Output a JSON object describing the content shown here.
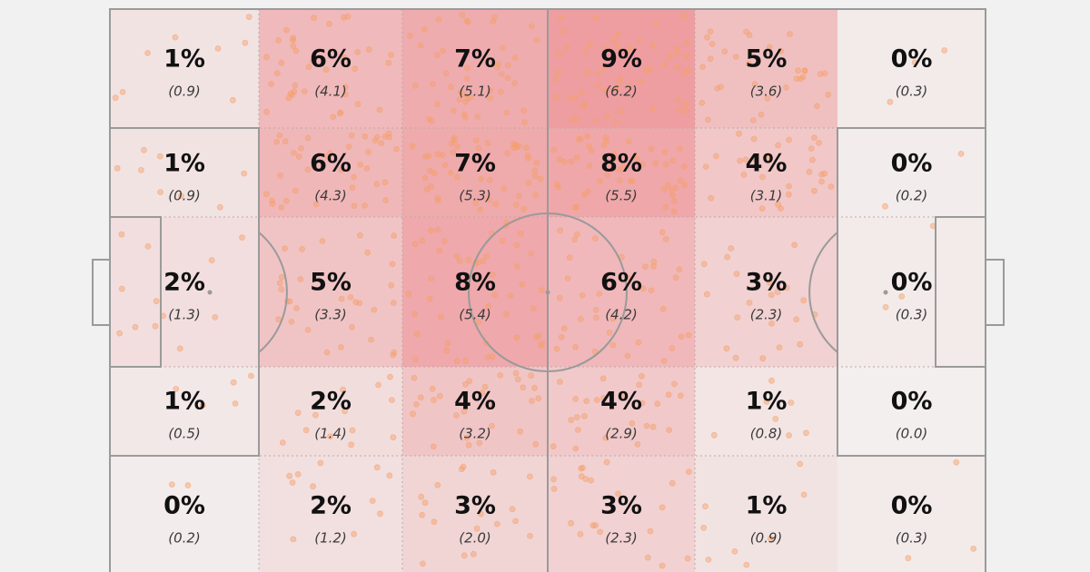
{
  "colors": {
    "background": "#f2f1f1",
    "heat_low": "#f3efee",
    "heat_high": "#ee9ea1",
    "point": "#f5a06a",
    "line": "#9a9a9a"
  },
  "chart_data": {
    "type": "heatmap",
    "title": "",
    "description_of_layout": "",
    "rows": 5,
    "cols": 6,
    "cells": [
      [
        {
          "pct": "1%",
          "count": "(0.9)",
          "value": 0.9
        },
        {
          "pct": "6%",
          "count": "(4.1)",
          "value": 4.1
        },
        {
          "pct": "7%",
          "count": "(5.1)",
          "value": 5.1
        },
        {
          "pct": "9%",
          "count": "(6.2)",
          "value": 6.2
        },
        {
          "pct": "5%",
          "count": "(3.6)",
          "value": 3.6
        },
        {
          "pct": "0%",
          "count": "(0.3)",
          "value": 0.3
        }
      ],
      [
        {
          "pct": "1%",
          "count": "(0.9)",
          "value": 0.9
        },
        {
          "pct": "6%",
          "count": "(4.3)",
          "value": 4.3
        },
        {
          "pct": "7%",
          "count": "(5.3)",
          "value": 5.3
        },
        {
          "pct": "8%",
          "count": "(5.5)",
          "value": 5.5
        },
        {
          "pct": "4%",
          "count": "(3.1)",
          "value": 3.1
        },
        {
          "pct": "0%",
          "count": "(0.2)",
          "value": 0.2
        }
      ],
      [
        {
          "pct": "2%",
          "count": "(1.3)",
          "value": 1.3
        },
        {
          "pct": "5%",
          "count": "(3.3)",
          "value": 3.3
        },
        {
          "pct": "8%",
          "count": "(5.4)",
          "value": 5.4
        },
        {
          "pct": "6%",
          "count": "(4.2)",
          "value": 4.2
        },
        {
          "pct": "3%",
          "count": "(2.3)",
          "value": 2.3
        },
        {
          "pct": "0%",
          "count": "(0.3)",
          "value": 0.3
        }
      ],
      [
        {
          "pct": "1%",
          "count": "(0.5)",
          "value": 0.5
        },
        {
          "pct": "2%",
          "count": "(1.4)",
          "value": 1.4
        },
        {
          "pct": "4%",
          "count": "(3.2)",
          "value": 3.2
        },
        {
          "pct": "4%",
          "count": "(2.9)",
          "value": 2.9
        },
        {
          "pct": "1%",
          "count": "(0.8)",
          "value": 0.8
        },
        {
          "pct": "0%",
          "count": "(0.0)",
          "value": 0.0
        }
      ],
      [
        {
          "pct": "0%",
          "count": "(0.2)",
          "value": 0.2
        },
        {
          "pct": "2%",
          "count": "(1.2)",
          "value": 1.2
        },
        {
          "pct": "3%",
          "count": "(2.0)",
          "value": 2.0
        },
        {
          "pct": "3%",
          "count": "(2.3)",
          "value": 2.3
        },
        {
          "pct": "1%",
          "count": "(0.9)",
          "value": 0.9
        },
        {
          "pct": "0%",
          "count": "(0.3)",
          "value": 0.3
        }
      ]
    ],
    "value_range": [
      0,
      6.2
    ]
  }
}
